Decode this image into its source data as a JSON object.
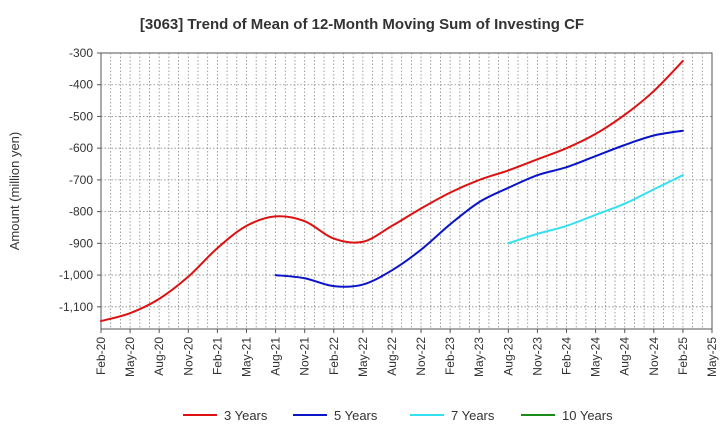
{
  "chart_data": {
    "type": "line",
    "title": "[3063]  Trend of Mean of 12-Month Moving Sum of Investing CF",
    "xlabel": "",
    "ylabel": "Amount (million yen)",
    "ylim": [
      -1170,
      -300
    ],
    "grid": true,
    "yticks": [
      {
        "value": -300,
        "label": "-300"
      },
      {
        "value": -400,
        "label": "-400"
      },
      {
        "value": -500,
        "label": "-500"
      },
      {
        "value": -600,
        "label": "-600"
      },
      {
        "value": -700,
        "label": "-700"
      },
      {
        "value": -800,
        "label": "-800"
      },
      {
        "value": -900,
        "label": "-900"
      },
      {
        "value": -1000,
        "label": "-1,000"
      },
      {
        "value": -1100,
        "label": "-1,100"
      }
    ],
    "xticks": [
      "Feb-20",
      "May-20",
      "Aug-20",
      "Nov-20",
      "Feb-21",
      "May-21",
      "Aug-21",
      "Nov-21",
      "Feb-22",
      "May-22",
      "Aug-22",
      "Nov-22",
      "Feb-23",
      "May-23",
      "Aug-23",
      "Nov-23",
      "Feb-24",
      "May-24",
      "Aug-24",
      "Nov-24",
      "Feb-25",
      "May-25"
    ],
    "legend_position": "bottom",
    "series": [
      {
        "name": "3 Years",
        "color": "#dd1111",
        "points": [
          [
            0,
            -1145
          ],
          [
            1,
            -1120
          ],
          [
            2,
            -1075
          ],
          [
            3,
            -1005
          ],
          [
            4,
            -915
          ],
          [
            5,
            -845
          ],
          [
            6,
            -815
          ],
          [
            7,
            -830
          ],
          [
            8,
            -885
          ],
          [
            9,
            -895
          ],
          [
            10,
            -845
          ],
          [
            11,
            -790
          ],
          [
            12,
            -740
          ],
          [
            13,
            -700
          ],
          [
            14,
            -670
          ],
          [
            15,
            -635
          ],
          [
            16,
            -600
          ],
          [
            17,
            -555
          ],
          [
            18,
            -495
          ],
          [
            19,
            -420
          ],
          [
            20,
            -325
          ]
        ]
      },
      {
        "name": "5 Years",
        "color": "#0a14c8",
        "points": [
          [
            6,
            -1000
          ],
          [
            7,
            -1010
          ],
          [
            8,
            -1035
          ],
          [
            9,
            -1030
          ],
          [
            10,
            -985
          ],
          [
            11,
            -920
          ],
          [
            12,
            -840
          ],
          [
            13,
            -770
          ],
          [
            14,
            -725
          ],
          [
            15,
            -685
          ],
          [
            16,
            -660
          ],
          [
            17,
            -625
          ],
          [
            18,
            -590
          ],
          [
            19,
            -560
          ],
          [
            20,
            -545
          ]
        ]
      },
      {
        "name": "7 Years",
        "color": "#33e0f0",
        "points": [
          [
            14,
            -900
          ],
          [
            15,
            -870
          ],
          [
            16,
            -845
          ],
          [
            17,
            -810
          ],
          [
            18,
            -775
          ],
          [
            19,
            -730
          ],
          [
            20,
            -685
          ]
        ]
      },
      {
        "name": "10 Years",
        "color": "#1a8c1a",
        "points": []
      }
    ]
  }
}
